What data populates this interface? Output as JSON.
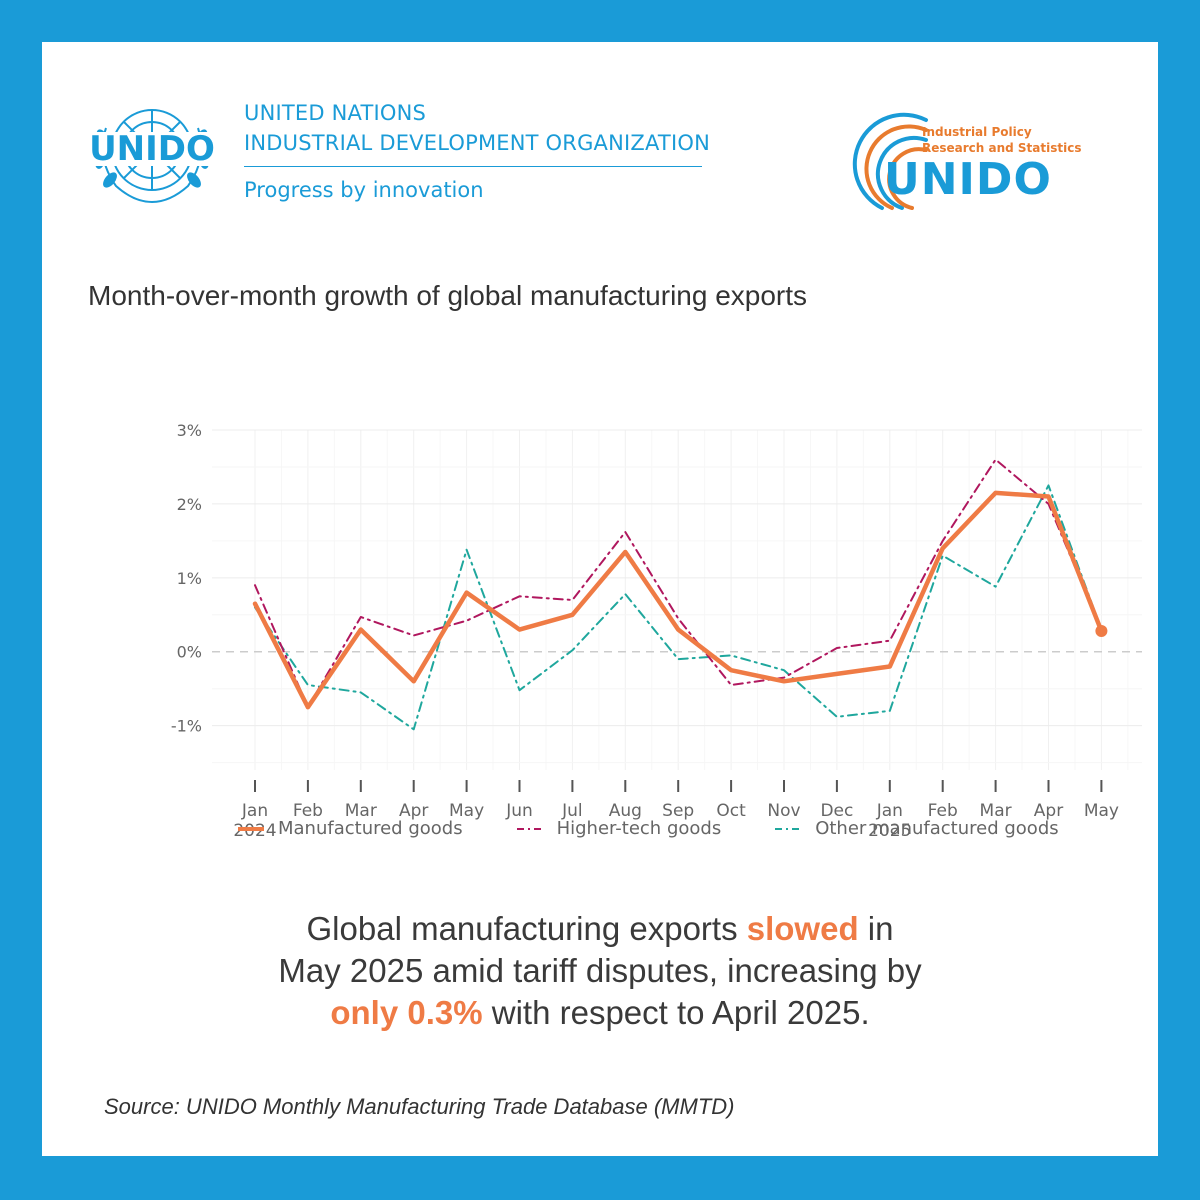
{
  "header": {
    "org_line1": "UNITED NATIONS",
    "org_line2": "INDUSTRIAL DEVELOPMENT ORGANIZATION",
    "tagline": "Progress by innovation",
    "un_logo_text": "UNIDO",
    "ips_line1": "Industrial Policy",
    "ips_line2": "Research and Statistics",
    "ips_wordmark": "UNIDO"
  },
  "colors": {
    "brand_blue": "#1a9bd7",
    "manufactured": "#ef7b45",
    "higher_tech": "#b0175e",
    "other": "#1fa79d",
    "highlight": "#ef7b45"
  },
  "chart_data": {
    "type": "line",
    "title": "Month-over-month growth of global manufacturing exports",
    "x": [
      "Jan",
      "Feb",
      "Mar",
      "Apr",
      "May",
      "Jun",
      "Jul",
      "Aug",
      "Sep",
      "Oct",
      "Nov",
      "Dec",
      "Jan",
      "Feb",
      "Mar",
      "Apr",
      "May"
    ],
    "x_year_labels": [
      "2024",
      "",
      "",
      "",
      "",
      "",
      "",
      "",
      "",
      "",
      "",
      "",
      "2025",
      "",
      "",
      "",
      ""
    ],
    "ylim": [
      -1.6,
      3.0
    ],
    "yticks": [
      3,
      2,
      1,
      0,
      -1
    ],
    "ytick_labels": [
      "3%",
      "2%",
      "1%",
      "0%",
      "-1%"
    ],
    "grid": true,
    "legend_position": "bottom",
    "series": [
      {
        "name": "Manufactured goods",
        "values": [
          0.65,
          -0.75,
          0.3,
          -0.4,
          0.8,
          0.3,
          0.5,
          1.35,
          0.3,
          -0.25,
          -0.4,
          -0.3,
          -0.2,
          1.4,
          2.15,
          2.1,
          0.28
        ]
      },
      {
        "name": "Higher-tech goods",
        "values": [
          0.9,
          -0.75,
          0.47,
          0.22,
          0.42,
          0.75,
          0.7,
          1.62,
          0.45,
          -0.45,
          -0.35,
          0.05,
          0.15,
          1.5,
          2.6,
          2.0,
          0.3
        ]
      },
      {
        "name": "Other manufactured goods",
        "values": [
          0.6,
          -0.45,
          -0.55,
          -1.05,
          1.38,
          -0.52,
          0.02,
          0.78,
          -0.1,
          -0.05,
          -0.25,
          -0.88,
          -0.8,
          1.3,
          0.88,
          2.25,
          0.3
        ]
      }
    ]
  },
  "headline": {
    "p1": "Global manufacturing exports ",
    "h1": "slowed",
    "p2": " in",
    "p3": "May 2025 amid tariff disputes, increasing by",
    "h2": "only 0.3%",
    "p4": " with respect to April 2025."
  },
  "source": "Source: UNIDO Monthly Manufacturing Trade Database (MMTD)"
}
